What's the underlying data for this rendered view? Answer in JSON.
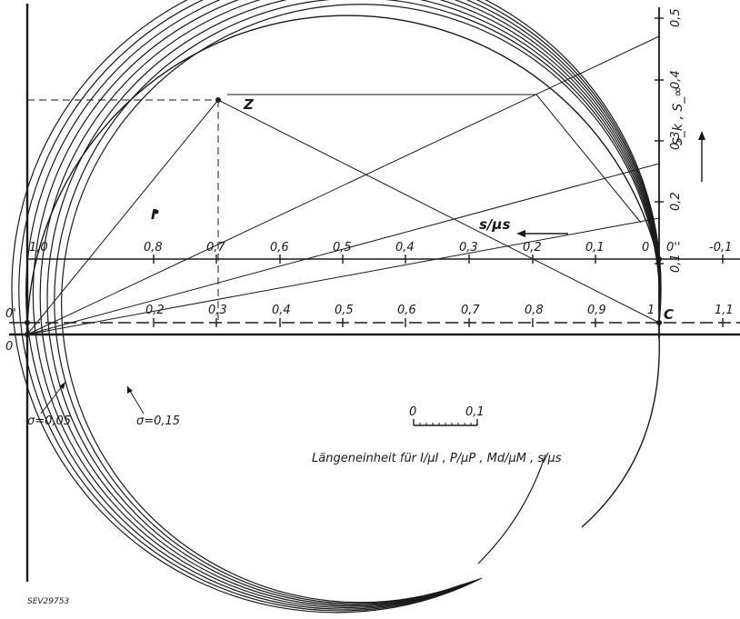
{
  "image_code": "SEV29753",
  "origin_labels": {
    "o": "0",
    "o_prime": "0'",
    "o_double_prime": "0''"
  },
  "point_labels": {
    "z": "Z",
    "i": "I",
    "c": "C"
  },
  "upper_scale": {
    "ticks": [
      "1,0",
      "0,8",
      "0,7",
      "0,6",
      "0,5",
      "0,4",
      "0,3",
      "0,2",
      "0,1",
      "0",
      "-0,1"
    ]
  },
  "lower_scale": {
    "ticks": [
      "0,2",
      "0,3",
      "0,4",
      "0,5",
      "0,6",
      "0,7",
      "0,8",
      "0,9",
      "1",
      "1,1"
    ]
  },
  "right_axis": {
    "title": "S_k , S_∞",
    "ticks": [
      "0,1",
      "0,2",
      "0,3",
      "0,4",
      "0,5"
    ]
  },
  "s_label": "s/μs",
  "sigma_labels": {
    "low": "σ=0,05",
    "high": "σ=0,15"
  },
  "unit_bar": {
    "left": "0",
    "right": "0,1"
  },
  "unit_caption": "Längeneinheit für I/μI ,  P/μP ,  Md/μM ,  s/μs"
}
